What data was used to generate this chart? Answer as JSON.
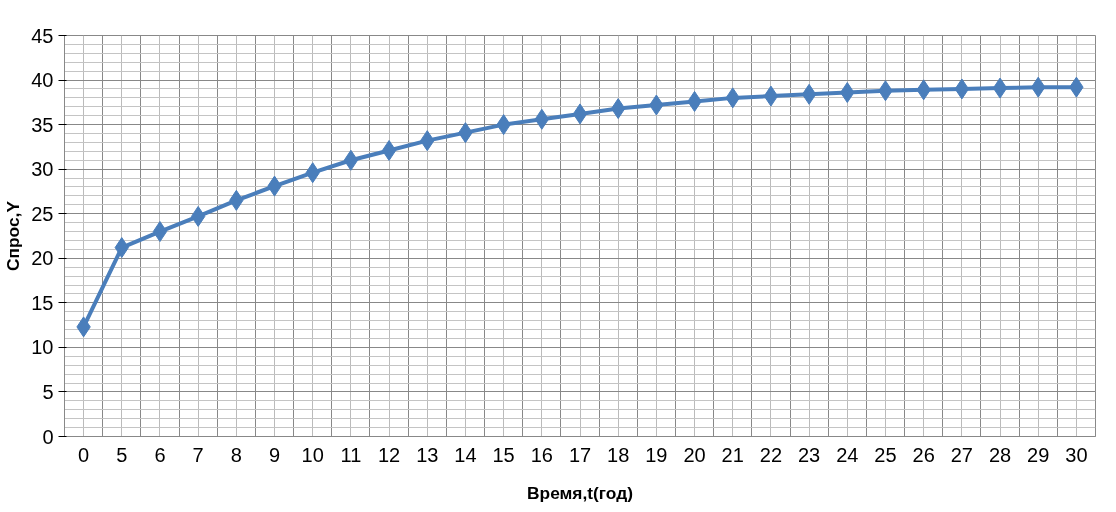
{
  "chart_data": {
    "type": "line",
    "xlabel": "Время,t(год)",
    "ylabel": "Спрос,Y",
    "categories": [
      "0",
      "5",
      "6",
      "7",
      "8",
      "9",
      "10",
      "11",
      "12",
      "13",
      "14",
      "15",
      "16",
      "17",
      "18",
      "19",
      "20",
      "21",
      "22",
      "23",
      "24",
      "25",
      "26",
      "27",
      "28",
      "29",
      "30"
    ],
    "series": [
      {
        "color": "#4a7ebb",
        "values": [
          12.3,
          21.2,
          23.0,
          24.7,
          26.5,
          28.1,
          29.6,
          31.0,
          32.1,
          33.2,
          34.1,
          35.0,
          35.6,
          36.2,
          36.8,
          37.2,
          37.6,
          38.0,
          38.2,
          38.4,
          38.6,
          38.8,
          38.9,
          39.0,
          39.1,
          39.2,
          39.2
        ]
      }
    ],
    "ylim": [
      0,
      45
    ],
    "yticks": [
      0,
      5,
      10,
      15,
      20,
      25,
      30,
      35,
      40,
      45
    ],
    "grid": true,
    "marker": "diamond",
    "line_style": "solid"
  }
}
